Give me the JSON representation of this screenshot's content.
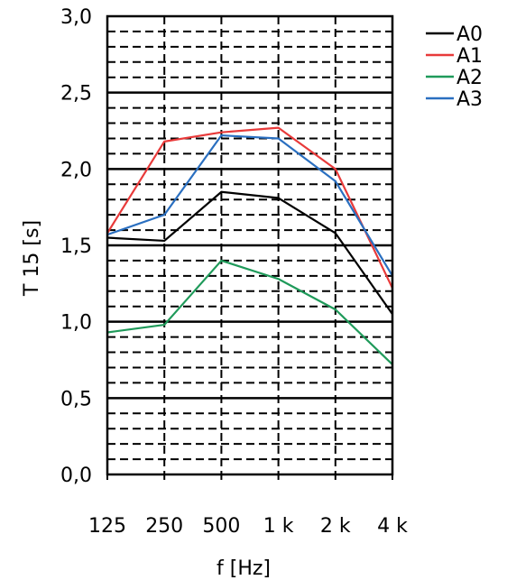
{
  "chart_data": {
    "type": "line",
    "categories": [
      "125",
      "250",
      "500",
      "1 k",
      "2 k",
      "4 k"
    ],
    "xlabel": "f [Hz]",
    "ylabel": "T 15 [s]",
    "ylim": [
      0.0,
      3.0
    ],
    "yticks": [
      "0,0",
      "0,5",
      "1,0",
      "1,5",
      "2,0",
      "2,5",
      "3,0"
    ],
    "grid": true,
    "legend_position": "top-right",
    "series": [
      {
        "name": "A0",
        "color": "#000000",
        "values": [
          1.55,
          1.53,
          1.85,
          1.81,
          1.58,
          1.05
        ]
      },
      {
        "name": "A1",
        "color": "#e83a3a",
        "values": [
          1.58,
          2.18,
          2.24,
          2.27,
          2.0,
          1.22
        ]
      },
      {
        "name": "A2",
        "color": "#1f9a5a",
        "values": [
          0.93,
          0.98,
          1.4,
          1.28,
          1.08,
          0.72
        ]
      },
      {
        "name": "A3",
        "color": "#2a6fc0",
        "values": [
          1.57,
          1.7,
          2.22,
          2.2,
          1.92,
          1.3
        ]
      }
    ]
  }
}
